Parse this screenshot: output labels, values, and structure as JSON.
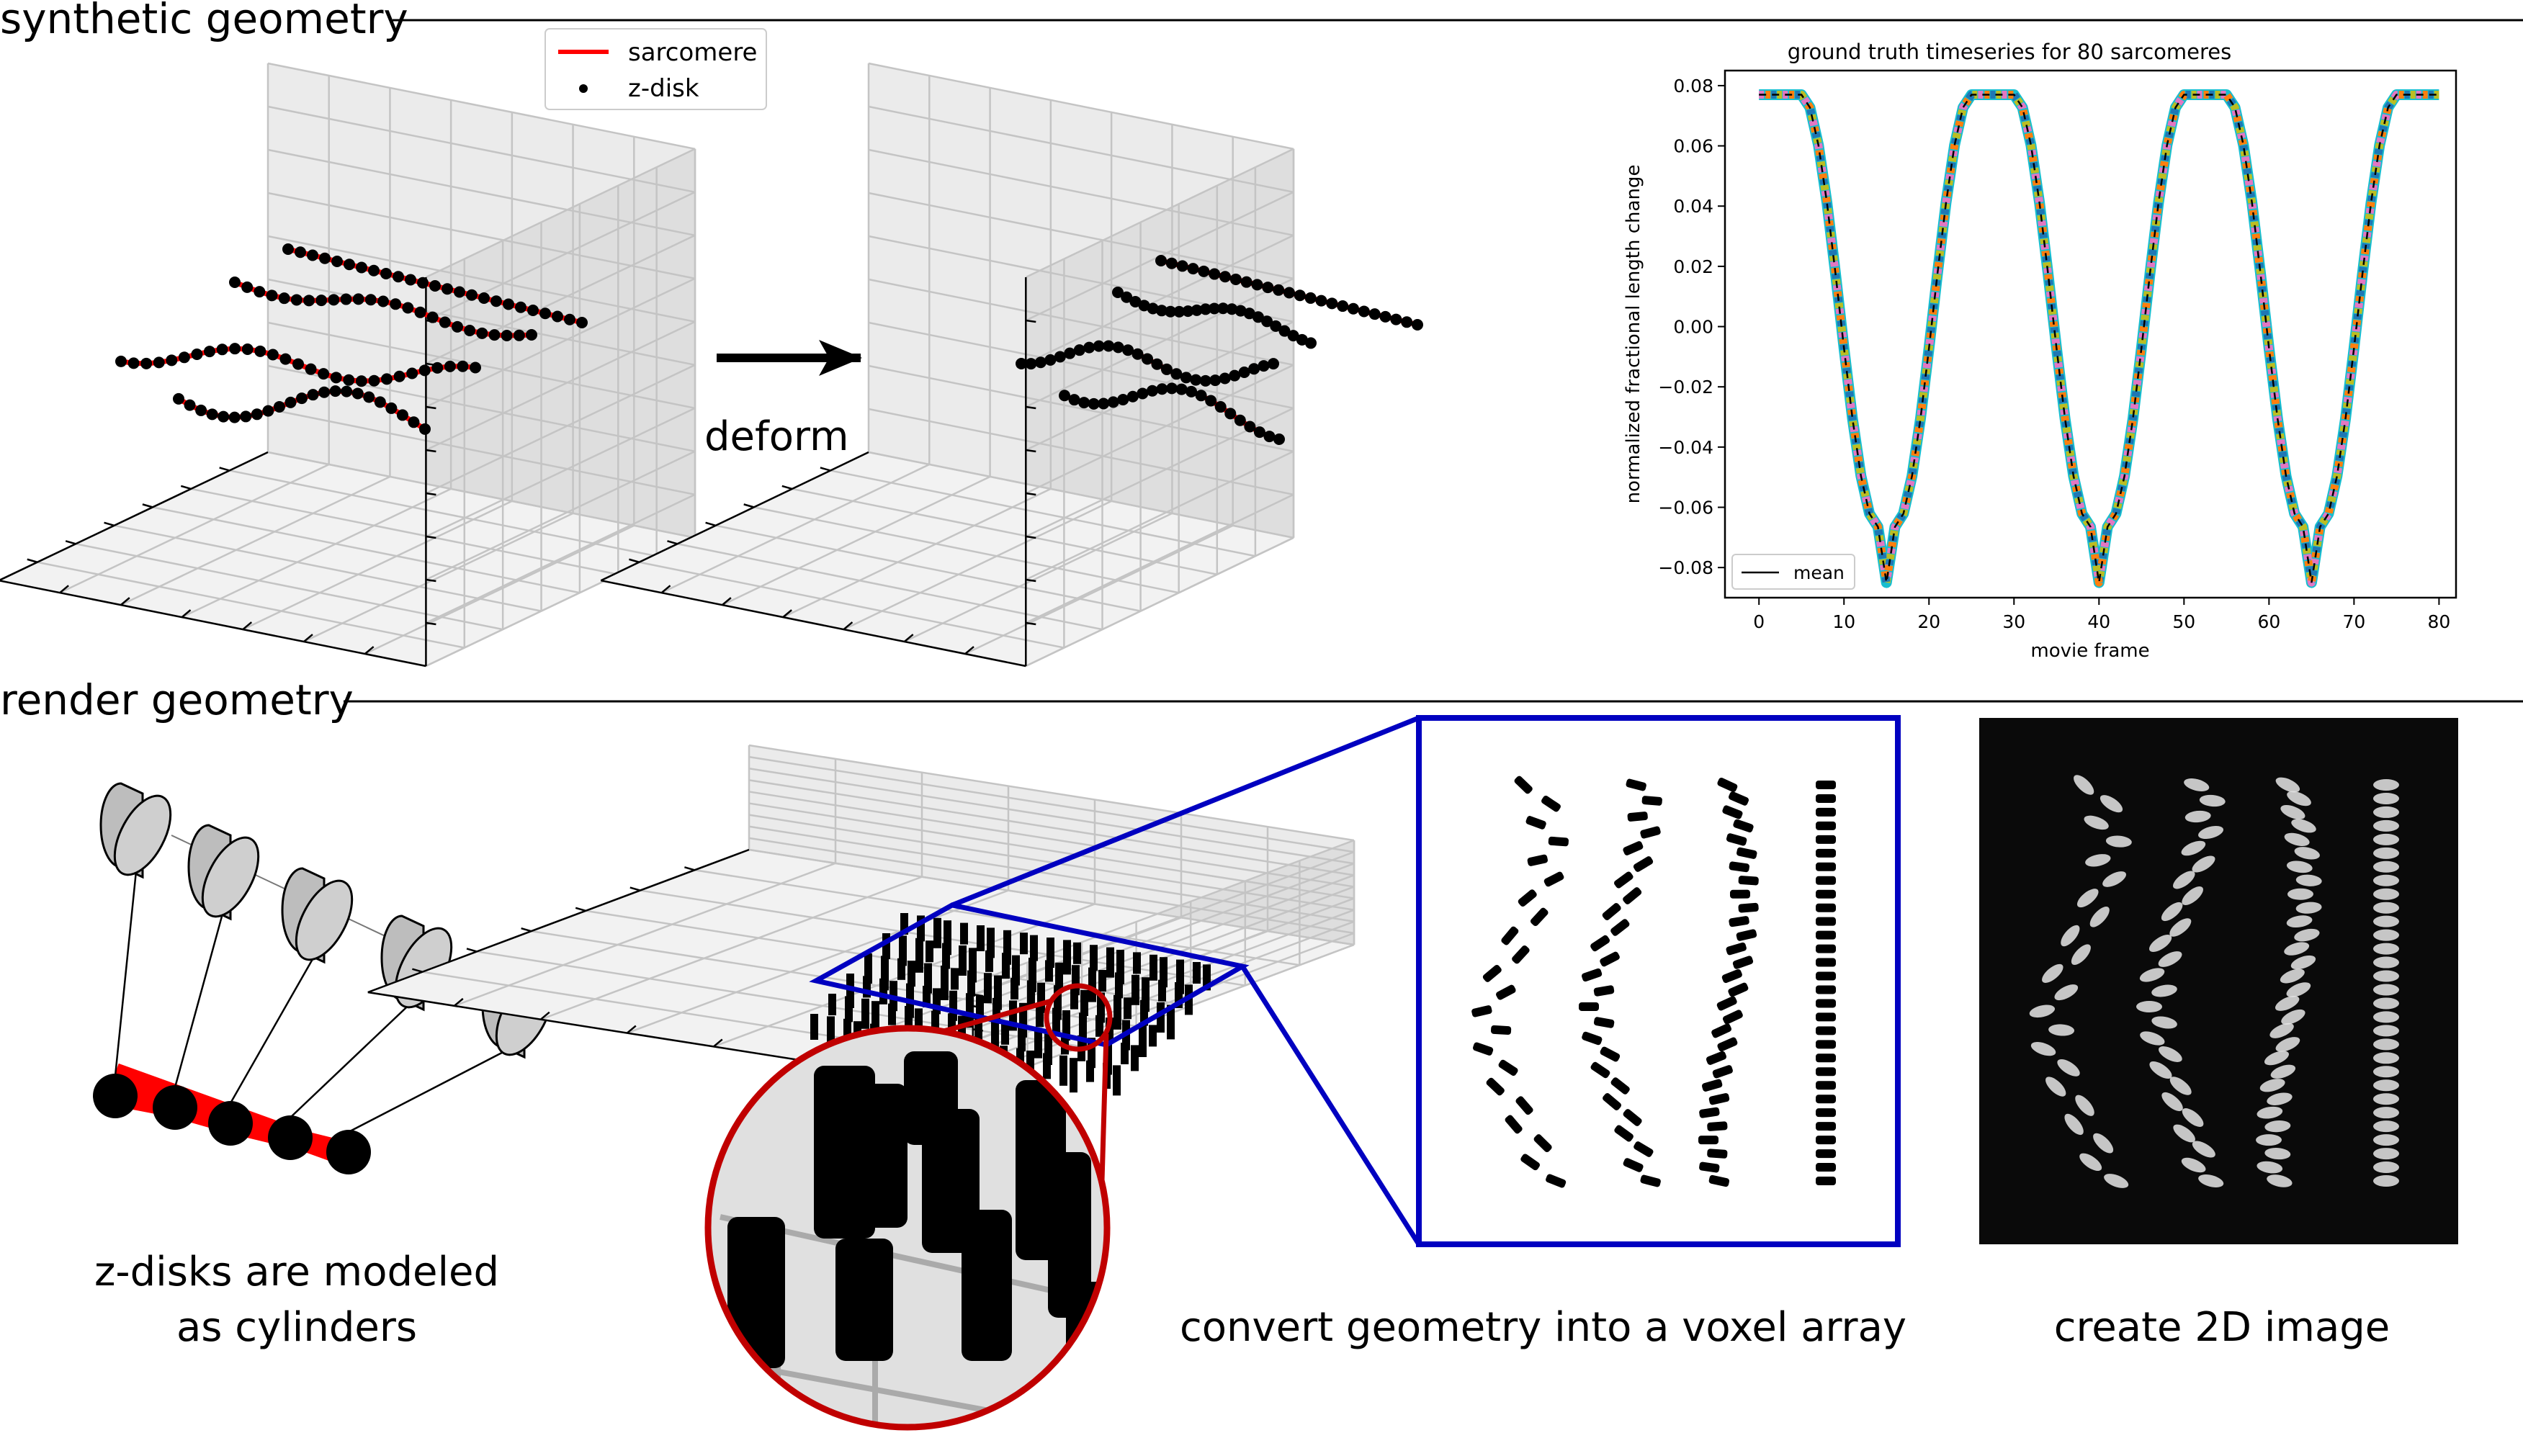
{
  "sections": {
    "synthetic": "synthetic geometry",
    "render": "render geometry"
  },
  "legend": {
    "sarcomere": "sarcomere",
    "zdisk": "z-disk"
  },
  "arrow_label": "deform",
  "captions": {
    "cylinders_1": "z-disks are modeled",
    "cylinders_2": "as cylinders",
    "voxel": "convert geometry into a voxel array",
    "image2d": "create 2D image"
  },
  "colors": {
    "sarcomere": "#ff0000",
    "zdisk": "#000000",
    "zoom_circle": "#c00000",
    "voxel_box": "#0000c0",
    "image_bg": "#0a0a0a"
  },
  "chart_data": {
    "type": "line",
    "title": "ground truth timeseries for 80 sarcomeres",
    "xlabel": "movie frame",
    "ylabel": "normalized fractional length change",
    "xlim": [
      -4,
      82
    ],
    "ylim": [
      -0.09,
      0.085
    ],
    "xticks": [
      0,
      10,
      20,
      30,
      40,
      50,
      60,
      70,
      80
    ],
    "xtick_labels": [
      "0",
      "10",
      "20",
      "30",
      "40",
      "50",
      "60",
      "70",
      "80"
    ],
    "yticks": [
      0.08,
      0.06,
      0.04,
      0.02,
      0.0,
      -0.02,
      -0.04,
      -0.06,
      -0.08
    ],
    "ytick_labels": [
      "0.08",
      "0.06",
      "0.04",
      "0.02",
      "0.00",
      "−0.02",
      "−0.04",
      "−0.06",
      "−0.08"
    ],
    "legend_position": "lower-left",
    "mean_label": "mean",
    "series_colors": [
      "#17becf",
      "#e377c2",
      "#bcbd22",
      "#1f77b4",
      "#ff7f0e"
    ],
    "x": [
      0,
      1,
      2,
      3,
      4,
      5,
      6,
      7,
      8,
      9,
      10,
      11,
      12,
      13,
      14,
      15,
      16,
      17,
      18,
      19,
      20,
      21,
      22,
      23,
      24,
      25,
      26,
      27,
      28,
      29,
      30,
      31,
      32,
      33,
      34,
      35,
      36,
      37,
      38,
      39,
      40,
      41,
      42,
      43,
      44,
      45,
      46,
      47,
      48,
      49,
      50,
      51,
      52,
      53,
      54,
      55,
      56,
      57,
      58,
      59,
      60,
      61,
      62,
      63,
      64,
      65,
      66,
      67,
      68,
      69,
      70,
      71,
      72,
      73,
      74,
      75,
      76,
      77,
      78,
      79,
      80
    ],
    "mean": [
      0.077,
      0.077,
      0.077,
      0.077,
      0.077,
      0.077,
      0.0727,
      0.0602,
      0.0411,
      0.0177,
      -0.0071,
      -0.0305,
      -0.0496,
      -0.0621,
      -0.0665,
      -0.085,
      -0.0665,
      -0.0621,
      -0.0496,
      -0.0305,
      -0.0071,
      0.0177,
      0.0411,
      0.0602,
      0.0727,
      0.077,
      0.077,
      0.077,
      0.077,
      0.077,
      0.077,
      0.0727,
      0.0602,
      0.0411,
      0.0177,
      -0.0071,
      -0.0305,
      -0.0496,
      -0.0621,
      -0.0665,
      -0.085,
      -0.0665,
      -0.0621,
      -0.0496,
      -0.0305,
      -0.0071,
      0.0177,
      0.0411,
      0.0602,
      0.0727,
      0.077,
      0.077,
      0.077,
      0.077,
      0.077,
      0.077,
      0.0727,
      0.0602,
      0.0411,
      0.0177,
      -0.0071,
      -0.0305,
      -0.0496,
      -0.0621,
      -0.0665,
      -0.085,
      -0.0665,
      -0.0621,
      -0.0496,
      -0.0305,
      -0.0071,
      0.0177,
      0.0411,
      0.0602,
      0.0727,
      0.077,
      0.077,
      0.077,
      0.077,
      0.077,
      0.077
    ]
  }
}
